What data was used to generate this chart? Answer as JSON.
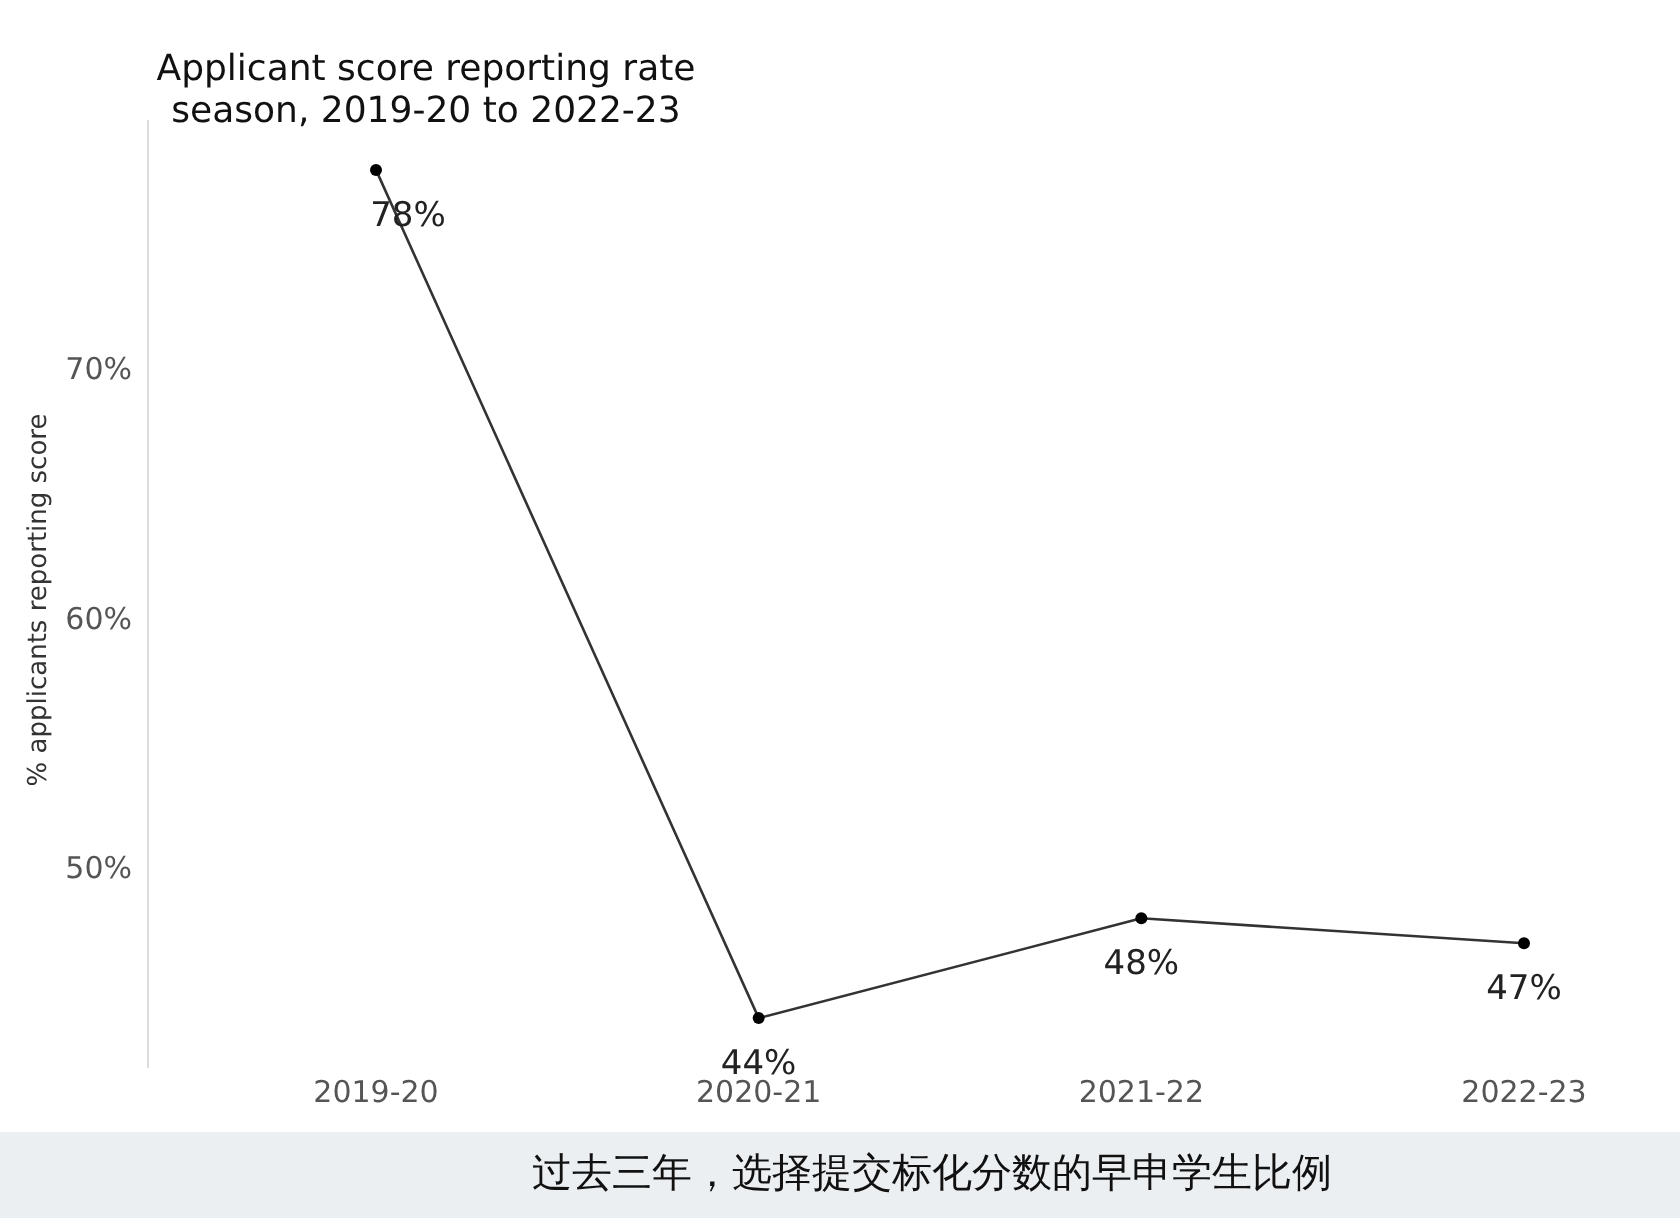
{
  "chart_data": {
    "type": "line",
    "title": "Applicant score reporting rate season, 2019-20 to 2022-23",
    "ylabel": "% applicants reporting score",
    "annotations": [
      "过去三年，选择提交标化分数的早申学生比例"
    ],
    "categories": [
      "2019-20",
      "2020-21",
      "2021-22",
      "2022-23"
    ],
    "series": [
      {
        "color": "#333333",
        "values": [
          78,
          44,
          48,
          47
        ],
        "value_labels": [
          "78%",
          "44%",
          "48%",
          "47%"
        ]
      }
    ],
    "ylim": [
      42,
      80
    ],
    "yticks": [
      {
        "value": 50,
        "label": "50%"
      },
      {
        "value": 60,
        "label": "60%"
      },
      {
        "value": 70,
        "label": "70%"
      }
    ],
    "marker": "circle",
    "line_style": "solid"
  }
}
